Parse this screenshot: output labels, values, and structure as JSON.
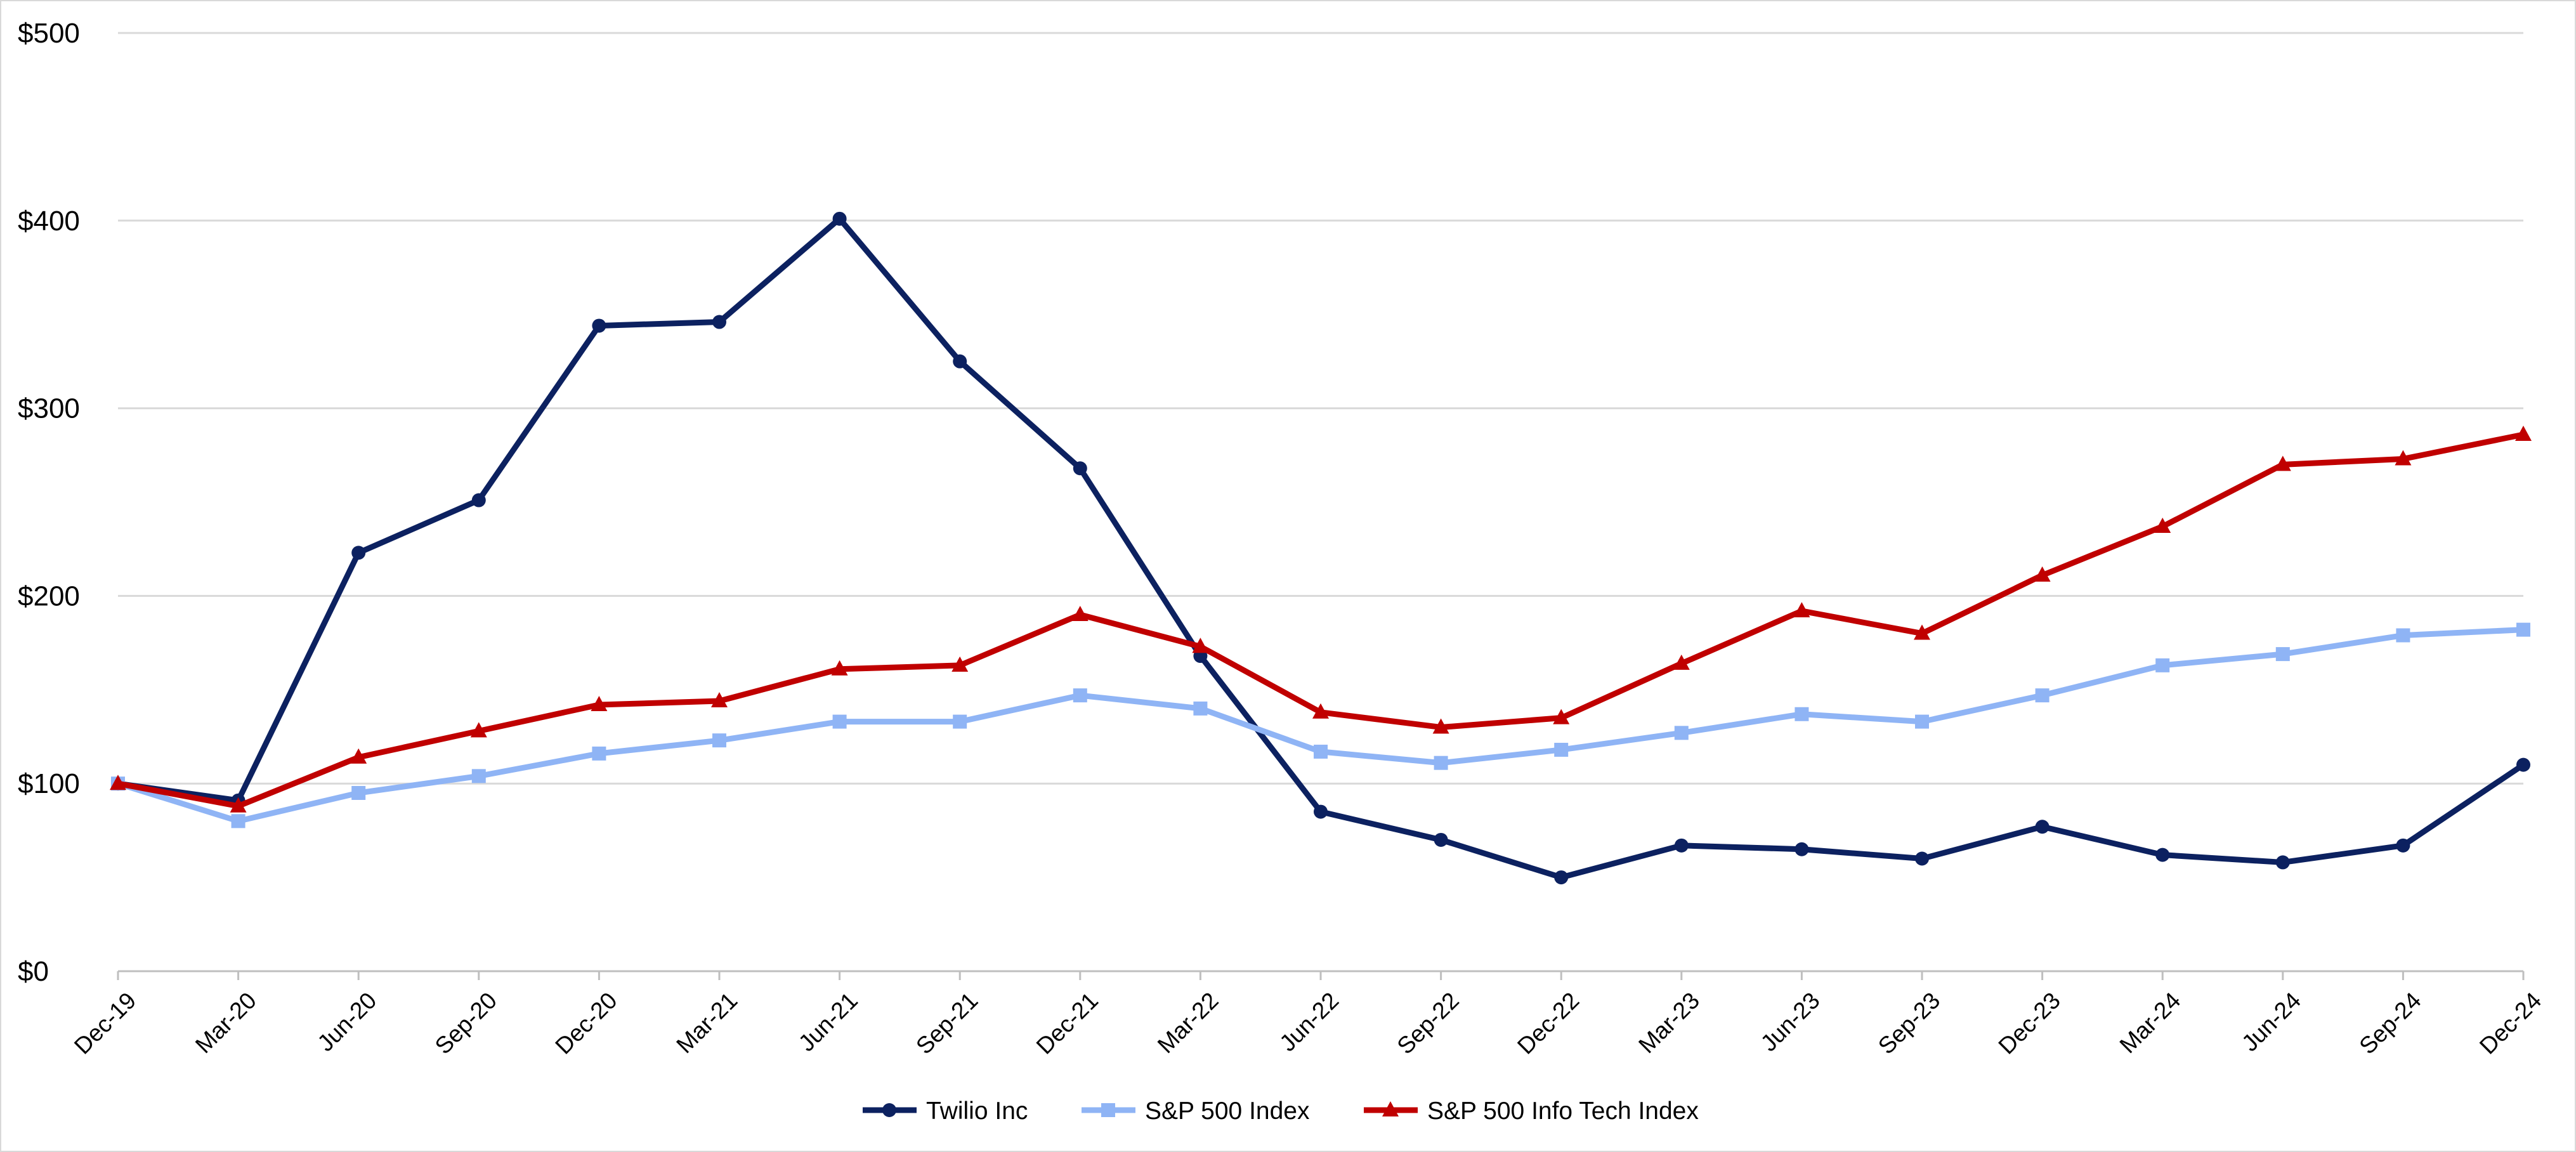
{
  "chart_data": {
    "type": "line",
    "title": "",
    "xlabel": "",
    "ylabel": "",
    "ylim": [
      0,
      500
    ],
    "yticks": [
      0,
      100,
      200,
      300,
      400,
      500
    ],
    "ytick_labels": [
      "$0",
      "$100",
      "$200",
      "$300",
      "$400",
      "$500"
    ],
    "grid": "horizontal",
    "legend": "bottom",
    "categories": [
      "Dec-19",
      "Mar-20",
      "Jun-20",
      "Sep-20",
      "Dec-20",
      "Mar-21",
      "Jun-21",
      "Sep-21",
      "Dec-21",
      "Mar-22",
      "Jun-22",
      "Sep-22",
      "Dec-22",
      "Mar-23",
      "Jun-23",
      "Sep-23",
      "Dec-23",
      "Mar-24",
      "Jun-24",
      "Sep-24",
      "Dec-24"
    ],
    "series": [
      {
        "name": "Twilio Inc",
        "color": "#0c2160",
        "marker": "circle",
        "values": [
          100,
          91,
          223,
          251,
          344,
          346,
          401,
          325,
          268,
          168,
          85,
          70,
          50,
          67,
          65,
          60,
          77,
          62,
          58,
          67,
          110
        ]
      },
      {
        "name": "S&P 500 Index",
        "color": "#8fb4f5",
        "marker": "square",
        "values": [
          100,
          80,
          95,
          104,
          116,
          123,
          133,
          133,
          147,
          140,
          117,
          111,
          118,
          127,
          137,
          133,
          147,
          163,
          169,
          179,
          182
        ]
      },
      {
        "name": "S&P 500 Info Tech Index",
        "color": "#c00000",
        "marker": "triangle",
        "values": [
          100,
          88,
          114,
          128,
          142,
          144,
          161,
          163,
          190,
          173,
          138,
          130,
          135,
          164,
          192,
          180,
          211,
          237,
          270,
          273,
          286
        ]
      }
    ]
  }
}
